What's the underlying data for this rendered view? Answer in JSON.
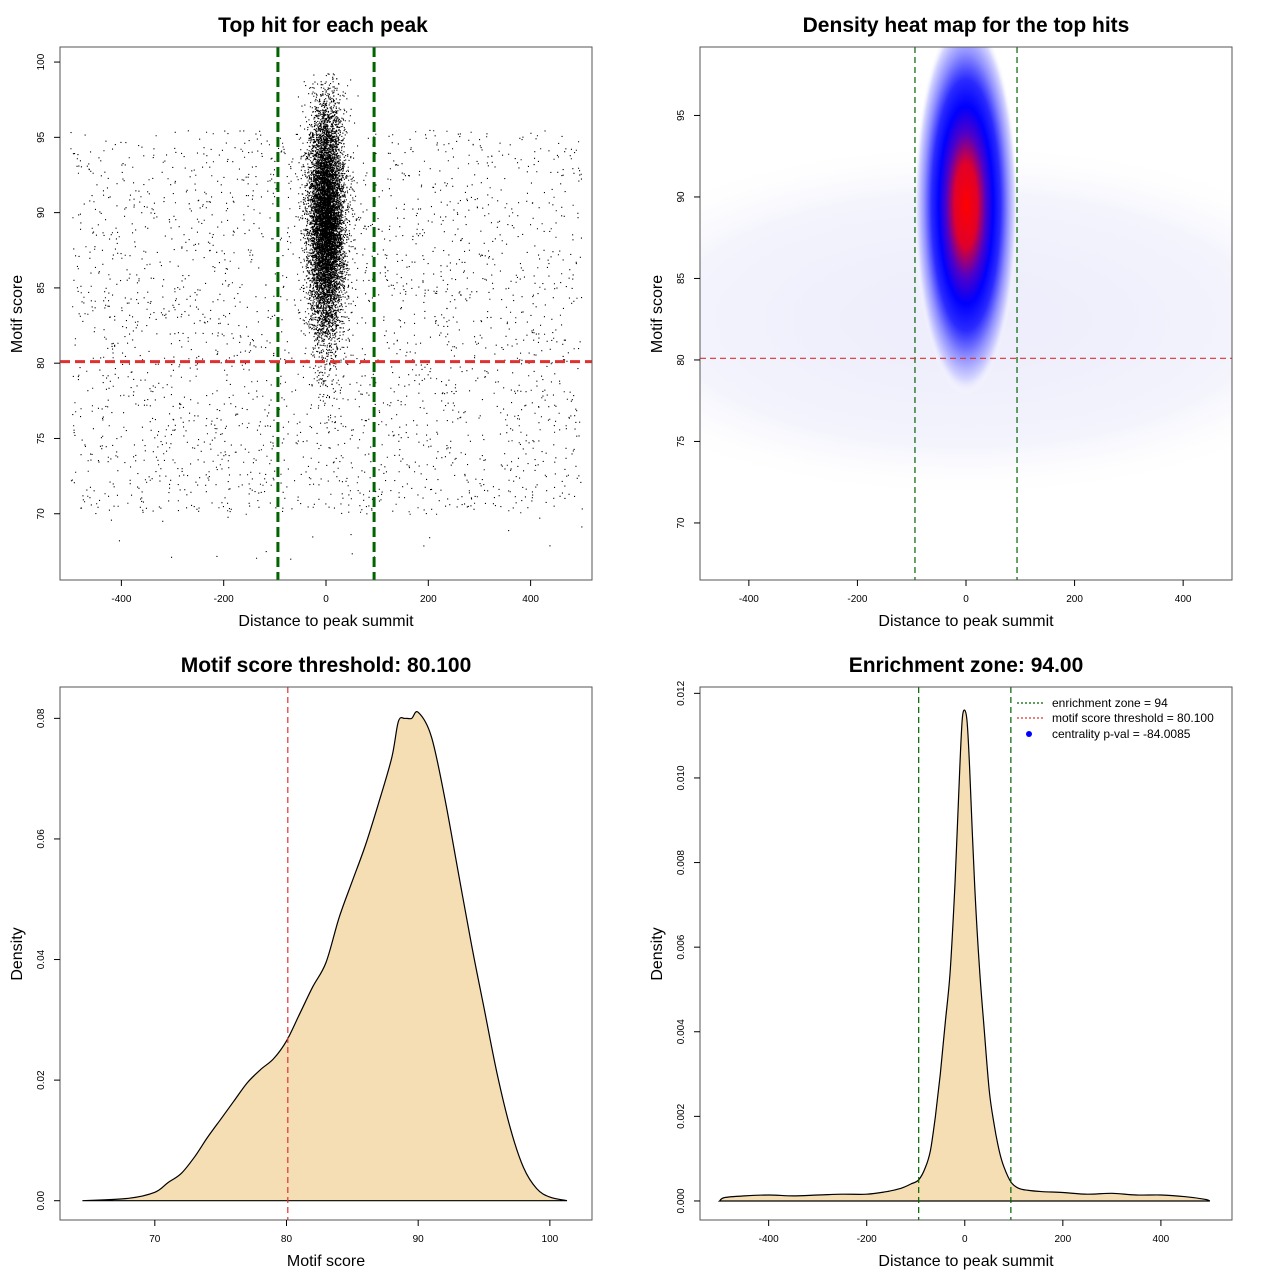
{
  "chart_data": [
    {
      "id": "scatter",
      "type": "scatter",
      "title": "Top hit for each peak",
      "xlabel": "Distance to peak summit",
      "ylabel": "Motif score",
      "xlim": [
        -520,
        520
      ],
      "ylim": [
        65.6,
        101
      ],
      "xticks": [
        -400,
        -200,
        0,
        200,
        400
      ],
      "yticks": [
        70,
        75,
        80,
        85,
        90,
        95,
        100
      ],
      "vlines": [
        -94,
        94
      ],
      "hline": 80.1,
      "vline_color": "#006400",
      "hline_color": "#e03030",
      "point_color": "#000000",
      "points_description": "dense central cluster near x=0, y≈82–96; sparse uniform background over x=-500..500, y≈70–95"
    },
    {
      "id": "heatmap",
      "type": "heatmap",
      "title": "Density heat map for the top hits",
      "xlabel": "Distance to peak summit",
      "ylabel": "Motif score",
      "xlim": [
        -490,
        490
      ],
      "ylim": [
        66.5,
        99.2
      ],
      "xticks": [
        -400,
        -200,
        0,
        200,
        400
      ],
      "yticks": [
        70,
        75,
        80,
        85,
        90,
        95
      ],
      "vlines": [
        -94,
        94
      ],
      "hline": 80.1,
      "peak_center": [
        0,
        89.5
      ],
      "colors": [
        "#ffffff",
        "#0000ff",
        "#ff0000"
      ]
    },
    {
      "id": "score-density",
      "type": "area",
      "title": "Motif score threshold: 80.100",
      "xlabel": "Motif score",
      "ylabel": "Density",
      "xlim": [
        62.8,
        103.2
      ],
      "ylim": [
        -0.0032,
        0.0852
      ],
      "xticks": [
        70,
        80,
        90,
        100
      ],
      "yticks": [
        0.0,
        0.02,
        0.04,
        0.06,
        0.08
      ],
      "ytick_labels": [
        "0.00",
        "0.02",
        "0.04",
        "0.06",
        "0.08"
      ],
      "vline": 80.1,
      "fill": "#f5deb3",
      "x": [
        64.5,
        68,
        70,
        71,
        72,
        73,
        74,
        75,
        76,
        77,
        78,
        79,
        80,
        81,
        82,
        83,
        84,
        85,
        86,
        87,
        88,
        88.5,
        89,
        89.5,
        90,
        91,
        92,
        93,
        94,
        95,
        96,
        97,
        98,
        99,
        100,
        101.3
      ],
      "y": [
        0,
        0.0004,
        0.0014,
        0.003,
        0.0045,
        0.0072,
        0.0105,
        0.0135,
        0.0165,
        0.0195,
        0.0217,
        0.0235,
        0.0265,
        0.031,
        0.0355,
        0.0395,
        0.047,
        0.053,
        0.059,
        0.066,
        0.0735,
        0.0795,
        0.08,
        0.08,
        0.081,
        0.077,
        0.067,
        0.055,
        0.043,
        0.032,
        0.021,
        0.012,
        0.0055,
        0.002,
        0.0006,
        0
      ],
      "line_color": "#000000"
    },
    {
      "id": "distance-density",
      "type": "area",
      "title": "Enrichment zone: 94.00",
      "xlabel": "Distance to peak summit",
      "ylabel": "Density",
      "xlim": [
        -540,
        545
      ],
      "ylim": [
        -0.00045,
        0.01215
      ],
      "xticks": [
        -400,
        -200,
        0,
        200,
        400
      ],
      "yticks": [
        0.0,
        0.002,
        0.004,
        0.006,
        0.008,
        0.01,
        0.012
      ],
      "ytick_labels": [
        "0.000",
        "0.002",
        "0.004",
        "0.006",
        "0.008",
        "0.010",
        "0.012"
      ],
      "vlines": [
        -94,
        94
      ],
      "fill": "#f5deb3",
      "x": [
        -500,
        -490,
        -450,
        -400,
        -350,
        -300,
        -250,
        -200,
        -160,
        -130,
        -110,
        -94,
        -80,
        -70,
        -60,
        -50,
        -40,
        -30,
        -20,
        -10,
        -5,
        0,
        5,
        10,
        20,
        30,
        40,
        50,
        60,
        70,
        80,
        94,
        110,
        130,
        160,
        200,
        250,
        300,
        350,
        400,
        450,
        490,
        500
      ],
      "y": [
        0,
        8e-05,
        0.00012,
        0.00014,
        0.00012,
        0.00014,
        0.00016,
        0.00016,
        0.00022,
        0.0003,
        0.0004,
        0.0005,
        0.0008,
        0.0012,
        0.002,
        0.003,
        0.0042,
        0.0054,
        0.0075,
        0.0103,
        0.0114,
        0.0116,
        0.0113,
        0.0102,
        0.0075,
        0.0055,
        0.004,
        0.0026,
        0.0018,
        0.0012,
        0.0008,
        0.00045,
        0.0003,
        0.00025,
        0.00022,
        0.0002,
        0.00016,
        0.00018,
        0.00014,
        0.00014,
        0.0001,
        4e-05,
        0
      ],
      "line_color": "#000000",
      "legend": {
        "placement": "top-right",
        "items": [
          {
            "label": "enrichment zone = 94",
            "color": "#006400",
            "style": "dotted"
          },
          {
            "label": "motif score threshold = 80.100",
            "color": "#e03030",
            "style": "dotted"
          },
          {
            "label": "centrality p-val = -84.0085",
            "color": "#0000ff",
            "style": "point"
          }
        ]
      }
    }
  ]
}
